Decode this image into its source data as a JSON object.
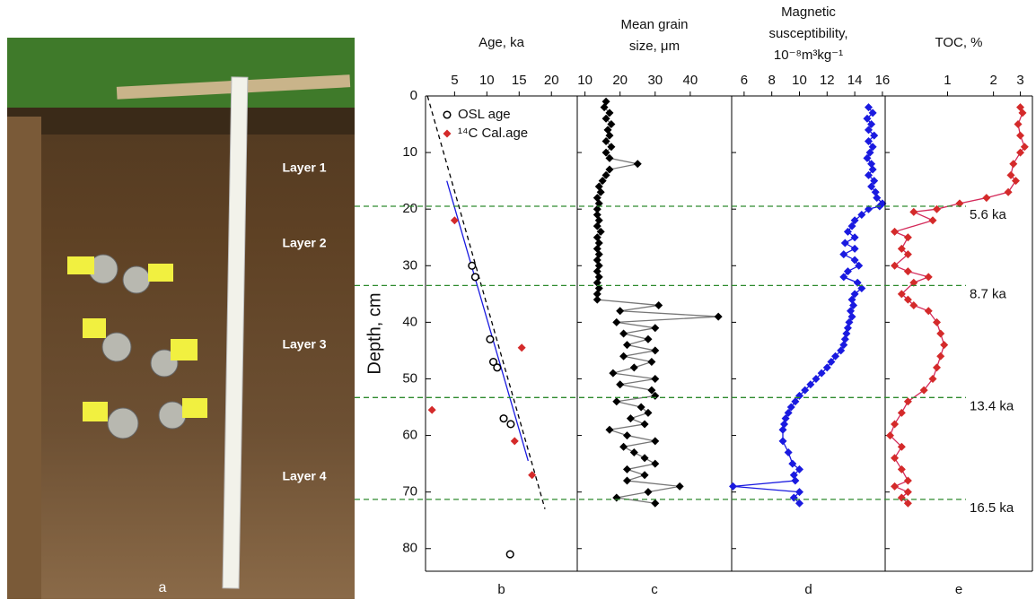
{
  "photo": {
    "layers": [
      "Layer 1",
      "Layer 2",
      "Layer 3",
      "Layer 4"
    ],
    "panel_label": "a"
  },
  "depth_axis": {
    "label": "Depth, cm",
    "lim": [
      0,
      84
    ],
    "ticks": [
      0,
      10,
      20,
      30,
      40,
      50,
      60,
      70,
      80
    ]
  },
  "horizons": [
    {
      "depth": 19.5,
      "label": "5.6 ka"
    },
    {
      "depth": 33.5,
      "label": "8.7 ka"
    },
    {
      "depth": 53.3,
      "label": "13.4 ka"
    },
    {
      "depth": 71.3,
      "label": "16.5 ka"
    }
  ],
  "chart_data": [
    {
      "type": "scatter",
      "panel": "b",
      "title": [
        "Age, ka"
      ],
      "xlim": [
        0.5,
        24
      ],
      "xticks": [
        5,
        10,
        15,
        20
      ],
      "series": [
        {
          "name": "OSL age",
          "marker": "circle-open",
          "color": "#000000",
          "values": [
            7.7,
            8.2,
            10.5,
            11,
            11.6,
            12.6,
            13.7,
            13.6
          ],
          "depth": [
            30,
            32,
            43,
            47,
            48,
            57,
            58,
            81
          ]
        },
        {
          "name": "¹⁴C Cal.age",
          "marker": "diamond",
          "color": "#d42a2a",
          "values": [
            5,
            15.4,
            1.5,
            14.3,
            17
          ],
          "depth": [
            22,
            44.5,
            55.5,
            61,
            67
          ]
        }
      ],
      "lines": [
        {
          "style": "solid",
          "color": "#1a1ae0",
          "values": [
            3.8,
            16.4
          ],
          "depth": [
            15,
            64.5
          ]
        },
        {
          "style": "dashed",
          "color": "#000000",
          "values": [
            0.8,
            19
          ],
          "depth": [
            0,
            73
          ]
        }
      ]
    },
    {
      "type": "profile",
      "panel": "c",
      "title": [
        "Mean grain",
        "size, μm"
      ],
      "xlim": [
        7.8,
        51.8
      ],
      "xticks": [
        10,
        20,
        30,
        40
      ],
      "color": "#000000",
      "line_color": "#777777",
      "values": [
        16,
        15.5,
        17,
        16,
        17.5,
        16.5,
        17,
        16,
        17.5,
        16,
        17,
        25,
        17,
        16,
        15,
        14,
        14.5,
        13.5,
        14,
        13.5,
        13.5,
        14,
        13.5,
        14.5,
        13.5,
        14,
        13.5,
        14,
        13.5,
        14,
        13.5,
        14,
        13.5,
        14,
        13.5,
        13.5,
        31,
        20,
        48,
        19,
        30,
        21,
        28,
        22,
        30,
        21,
        29,
        24,
        18,
        30,
        20,
        29,
        30,
        19,
        26,
        28,
        23,
        27,
        17,
        22,
        30,
        21,
        24,
        27,
        30,
        22,
        27,
        22,
        37,
        28,
        19,
        30
      ],
      "depth": [
        1,
        2,
        3,
        4,
        5,
        6,
        7,
        8,
        9,
        10,
        11,
        12,
        13,
        14,
        15,
        16,
        17,
        18,
        19,
        20,
        21,
        22,
        23,
        24,
        25,
        26,
        27,
        28,
        29,
        30,
        31,
        32,
        33,
        34,
        35,
        36,
        37,
        38,
        39,
        40,
        41,
        42,
        43,
        44,
        45,
        46,
        47,
        48,
        49,
        50,
        51,
        52,
        53,
        54,
        55,
        56,
        57,
        58,
        59,
        60,
        61,
        62,
        63,
        64,
        65,
        66,
        67,
        68,
        69,
        70,
        71,
        72
      ]
    },
    {
      "type": "profile",
      "panel": "d",
      "title": [
        "Magnetic",
        "susceptibility,",
        "10⁻⁸m³kg⁻¹"
      ],
      "xlim": [
        5.1,
        16.2
      ],
      "xticks": [
        6,
        8,
        10,
        12,
        14,
        16
      ],
      "color": "#1a1ae0",
      "line_color": "#1a1ae0",
      "values": [
        15,
        15.3,
        14.9,
        15.2,
        15,
        15.4,
        15,
        15.3,
        15.1,
        14.9,
        15.2,
        15.3,
        15,
        15.4,
        15.2,
        15.5,
        15.6,
        16,
        15.8,
        15,
        14.5,
        14,
        13.8,
        13.5,
        14,
        13.3,
        14,
        13.2,
        14,
        14.3,
        13.5,
        13.2,
        14.2,
        14.5,
        14,
        13.8,
        13.9,
        13.7,
        13.8,
        13.6,
        13.5,
        13.4,
        13.3,
        13.2,
        13,
        12.6,
        12.3,
        12,
        11.6,
        11.2,
        10.8,
        10.4,
        10,
        9.7,
        9.4,
        9.2,
        9,
        8.9,
        8.8,
        8.8,
        9.2,
        9.5,
        10,
        9.6,
        9.7,
        5.2,
        10,
        9.6,
        10
      ],
      "depth": [
        2,
        3,
        4,
        5,
        6,
        7,
        8,
        9,
        10,
        11,
        12,
        13,
        14,
        15,
        16,
        17,
        18,
        19,
        19.5,
        20,
        21,
        22,
        23,
        24,
        25,
        26,
        27,
        28,
        29,
        30,
        31,
        32,
        33,
        34,
        35,
        36,
        37,
        38,
        39,
        40,
        41,
        42,
        43,
        44,
        45,
        46,
        47,
        48,
        49,
        50,
        51,
        52,
        53,
        54,
        55,
        56,
        57,
        58,
        59,
        61,
        63,
        65,
        66,
        67,
        68,
        69,
        70,
        71,
        72
      ]
    },
    {
      "type": "profile",
      "panel": "e",
      "title": [
        "TOC, %"
      ],
      "xlim": [
        0.39,
        3.6
      ],
      "log": true,
      "xticks": [
        1,
        2,
        3
      ],
      "color": "#d42a2a",
      "line_color": "#d42a5a",
      "values": [
        3,
        3.1,
        2.9,
        3,
        3.2,
        3,
        2.7,
        2.6,
        2.8,
        2.5,
        1.8,
        1.2,
        0.85,
        0.6,
        0.8,
        0.45,
        0.55,
        0.5,
        0.55,
        0.45,
        0.55,
        0.75,
        0.6,
        0.5,
        0.55,
        0.6,
        0.75,
        0.85,
        0.9,
        0.95,
        0.9,
        0.85,
        0.8,
        0.7,
        0.55,
        0.5,
        0.45,
        0.42,
        0.5,
        0.45,
        0.5,
        0.55,
        0.45,
        0.55,
        0.5,
        0.55
      ],
      "depth": [
        2,
        3,
        5,
        7,
        9,
        10,
        12,
        14,
        15,
        17,
        18,
        19,
        20,
        20.5,
        22,
        24,
        25,
        27,
        28,
        30,
        31,
        32,
        33,
        35,
        36,
        37,
        38,
        40,
        42,
        44,
        46,
        48,
        50,
        52,
        54,
        56,
        58,
        60,
        62,
        64,
        66,
        68,
        69,
        70,
        71,
        72
      ]
    }
  ]
}
